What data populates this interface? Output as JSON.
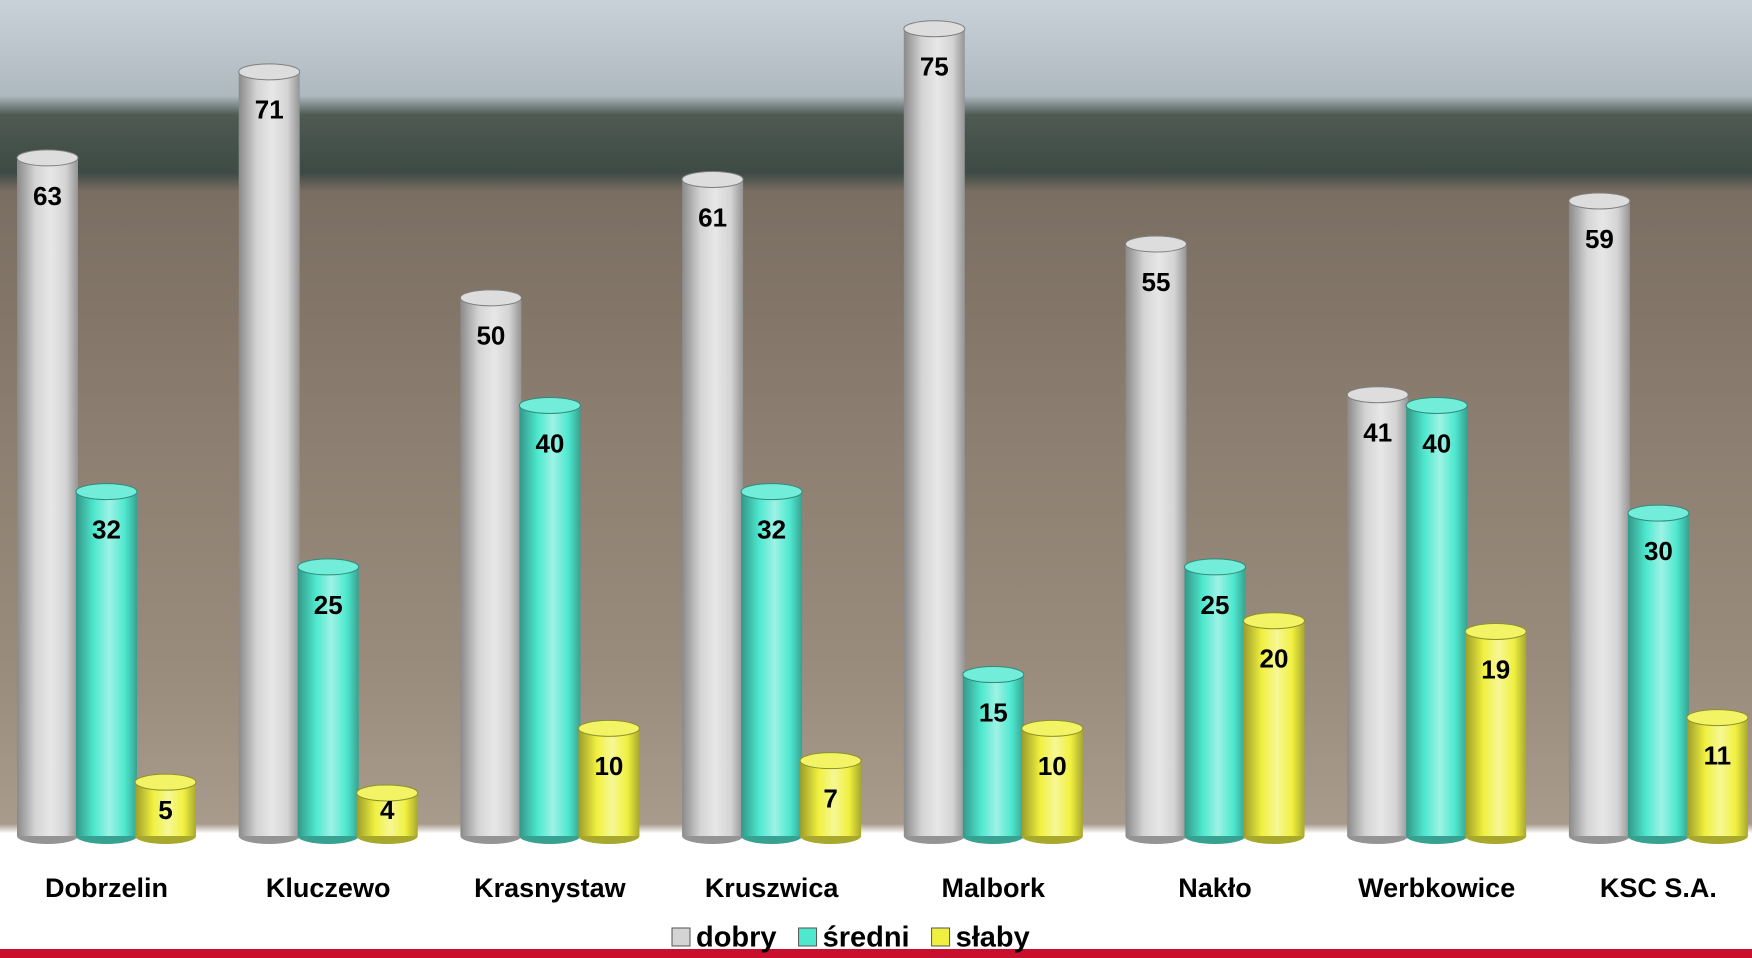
{
  "chart_data": {
    "type": "bar",
    "categories": [
      "Dobrzelin",
      "Kluczewo",
      "Krasnystaw",
      "Kruszwica",
      "Malbork",
      "Nakło",
      "Werbkowice",
      "KSC S.A."
    ],
    "series": [
      {
        "name": "dobry",
        "color": "#d4d4d4",
        "values": [
          63,
          71,
          50,
          61,
          75,
          55,
          41,
          59
        ]
      },
      {
        "name": "średni",
        "color": "#4ee8cf",
        "values": [
          32,
          25,
          40,
          32,
          15,
          25,
          40,
          30
        ]
      },
      {
        "name": "słaby",
        "color": "#f0f040",
        "values": [
          5,
          4,
          10,
          7,
          10,
          20,
          19,
          11
        ]
      }
    ],
    "ylim": [
      0,
      76
    ],
    "legend": "bottom"
  }
}
